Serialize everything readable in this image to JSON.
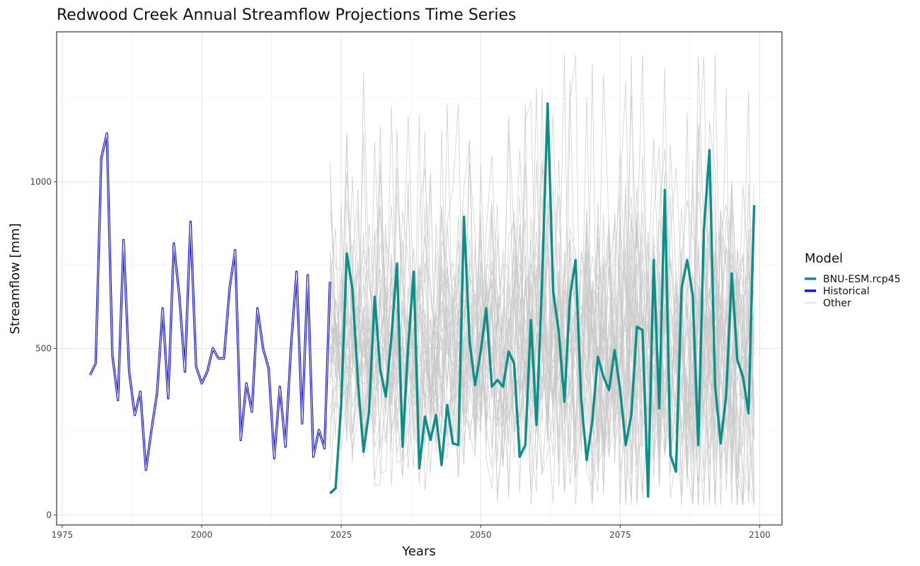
{
  "chart_data": {
    "type": "line",
    "title": "Redwood Creek Annual Streamflow Projections Time Series",
    "xlabel": "Years",
    "ylabel": "Streamflow [mm]",
    "xlim": [
      1974,
      2104
    ],
    "ylim": [
      -30,
      1450
    ],
    "x_ticks": [
      1975,
      2000,
      2025,
      2050,
      2075,
      2100
    ],
    "y_ticks": [
      0,
      500,
      1000
    ],
    "grid": true,
    "legend": {
      "title": "Model",
      "position": "right",
      "entries": [
        {
          "name": "BNU-ESM.rcp45",
          "color": "#0b8f88"
        },
        {
          "name": "Historical",
          "color": "#1010ee"
        },
        {
          "name": "Other",
          "color": "#c8c8c8"
        }
      ]
    },
    "series": [
      {
        "name": "Historical",
        "color": "#1010ee",
        "style": "double",
        "x": [
          1980,
          1981,
          1982,
          1983,
          1984,
          1985,
          1986,
          1987,
          1988,
          1989,
          1990,
          1991,
          1992,
          1993,
          1994,
          1995,
          1996,
          1997,
          1998,
          1999,
          2000,
          2001,
          2002,
          2003,
          2004,
          2005,
          2006,
          2007,
          2008,
          2009,
          2010,
          2011,
          2012,
          2013,
          2014,
          2015,
          2016,
          2017,
          2018,
          2019,
          2020,
          2021,
          2022,
          2023
        ],
        "values": [
          420,
          455,
          1070,
          1145,
          480,
          345,
          825,
          430,
          300,
          370,
          135,
          255,
          365,
          620,
          350,
          815,
          655,
          430,
          880,
          445,
          395,
          430,
          500,
          470,
          470,
          680,
          795,
          225,
          395,
          310,
          620,
          500,
          440,
          170,
          385,
          205,
          505,
          730,
          275,
          720,
          175,
          255,
          200,
          700
        ]
      },
      {
        "name": "BNU-ESM.rcp45",
        "color": "#0b8f88",
        "style": "solid",
        "x": [
          2023,
          2024,
          2025,
          2026,
          2027,
          2028,
          2029,
          2030,
          2031,
          2032,
          2033,
          2034,
          2035,
          2036,
          2037,
          2038,
          2039,
          2040,
          2041,
          2042,
          2043,
          2044,
          2045,
          2046,
          2047,
          2048,
          2049,
          2050,
          2051,
          2052,
          2053,
          2054,
          2055,
          2056,
          2057,
          2058,
          2059,
          2060,
          2061,
          2062,
          2063,
          2064,
          2065,
          2066,
          2067,
          2068,
          2069,
          2070,
          2071,
          2072,
          2073,
          2074,
          2075,
          2076,
          2077,
          2078,
          2079,
          2080,
          2081,
          2082,
          2083,
          2084,
          2085,
          2086,
          2087,
          2088,
          2089,
          2090,
          2091,
          2092,
          2093,
          2094,
          2095,
          2096,
          2097,
          2098,
          2099
        ],
        "values": [
          65,
          80,
          330,
          785,
          680,
          400,
          190,
          310,
          655,
          435,
          355,
          535,
          755,
          205,
          505,
          730,
          140,
          295,
          225,
          300,
          150,
          330,
          215,
          210,
          895,
          520,
          390,
          490,
          620,
          385,
          405,
          385,
          490,
          455,
          175,
          210,
          585,
          270,
          700,
          1235,
          670,
          550,
          340,
          655,
          765,
          350,
          165,
          280,
          475,
          415,
          375,
          495,
          375,
          210,
          300,
          565,
          555,
          55,
          765,
          320,
          975,
          180,
          130,
          680,
          765,
          660,
          210,
          855,
          1095,
          390,
          215,
          360,
          725,
          465,
          415,
          305,
          930
        ]
      },
      {
        "name": "Other",
        "color": "#c8c8c8",
        "style": "ensemble",
        "lines": 30,
        "x_range": [
          2023,
          2099
        ],
        "value_range": [
          30,
          1380
        ]
      }
    ]
  }
}
